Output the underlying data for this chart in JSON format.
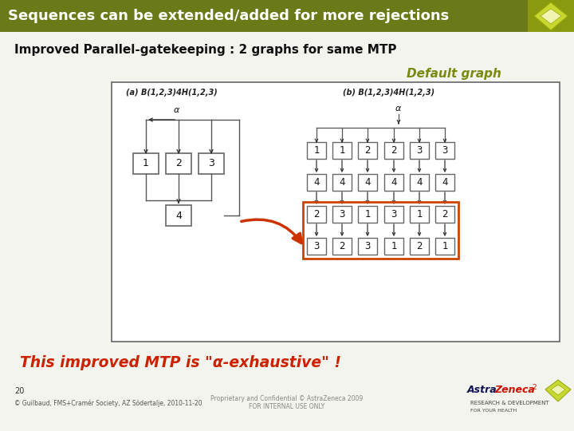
{
  "title": "Sequences can be extended/added for more rejections",
  "title_bg": "#6b7a18",
  "title_fg": "#ffffff",
  "subtitle": "Improved Parallel-gatekeeping : 2 graphs for same MTP",
  "default_graph_label": "Default graph",
  "default_graph_color": "#7a8a10",
  "label_a": "(a) B(1,2,3)4H(1,2,3)",
  "label_b": "(b) B(1,2,3)4H(1,2,3)",
  "bottom_text": "This improved MTP is \"α-exhaustive\" !",
  "bottom_text_color": "#cc2200",
  "slide_bg": "#f4f4ee",
  "orange_rect_color": "#cc4400",
  "arrow_color": "#cc3300",
  "graph_b_row1": [
    "1",
    "1",
    "2",
    "2",
    "3",
    "3"
  ],
  "graph_b_row2": [
    "4",
    "4",
    "4",
    "4",
    "4",
    "4"
  ],
  "graph_b_row3": [
    "2",
    "3",
    "1",
    "3",
    "1",
    "2"
  ],
  "graph_b_row4": [
    "3",
    "2",
    "3",
    "1",
    "2",
    "1"
  ],
  "page_num": "20",
  "footer_left": "© Guilbaud, FMS+Cramér Society, AZ Södertalje, 2010-11-20",
  "footer_mid": "Proprietary and Confidential © AstraZeneca 2009\nFOR INTERNAL USE ONLY"
}
